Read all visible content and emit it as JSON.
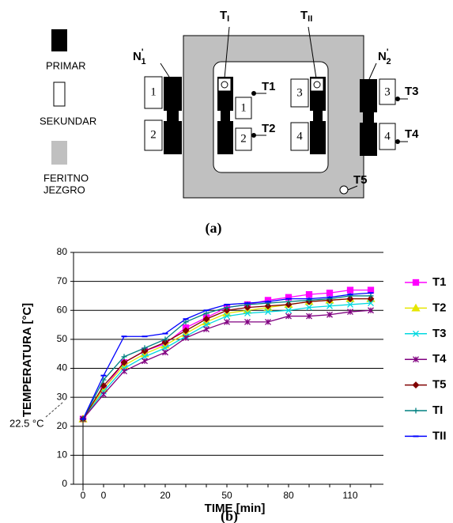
{
  "diagram": {
    "legend": {
      "primary": "PRIMAR",
      "secondary": "SEKUNDAR",
      "core": [
        "FERITNO",
        "JEZGRO"
      ]
    },
    "windings": {
      "n1": {
        "base": "N",
        "sup": "'",
        "sub": "1"
      },
      "n2": {
        "base": "N",
        "sup": "'",
        "sub": "2"
      }
    },
    "coils": [
      1,
      2,
      1,
      2,
      3,
      4,
      3,
      4
    ],
    "probes": [
      "T1",
      "T2",
      "T3",
      "T4",
      "T5"
    ],
    "thermocouples": [
      {
        "base": "T",
        "sub": "I"
      },
      {
        "base": "T",
        "sub": "II"
      }
    ],
    "caption": "(a)"
  },
  "chart_data": {
    "type": "line",
    "caption": "(b)",
    "x_label": "TIME [min]",
    "y_label": "TEMPERATURA  [°C]",
    "annotation": "22.5 °C",
    "categories": [
      "0",
      "0",
      null,
      null,
      "20",
      null,
      null,
      "50",
      null,
      null,
      "80",
      null,
      null,
      "110",
      null
    ],
    "ylim": [
      0,
      80
    ],
    "yticks": [
      0,
      10,
      20,
      30,
      40,
      50,
      60,
      70,
      80
    ],
    "grid": true,
    "legend": "right",
    "series": [
      {
        "name": "T1",
        "color": "#ff00ff",
        "marker": "square",
        "values": [
          22.5,
          33,
          42,
          46,
          48.5,
          54,
          57.5,
          61,
          62,
          63.5,
          64.5,
          65.5,
          66,
          67,
          67
        ]
      },
      {
        "name": "T2",
        "color": "#e6e600",
        "marker": "triangle",
        "values": [
          22.5,
          33,
          41,
          45,
          48,
          52,
          56,
          59,
          60,
          61,
          62,
          63,
          63.5,
          64,
          64
        ]
      },
      {
        "name": "T3",
        "color": "#00d8e0",
        "marker": "cross",
        "values": [
          22.5,
          32,
          40,
          44,
          47,
          51,
          55,
          58,
          59,
          59.5,
          60,
          61,
          61.5,
          62,
          62.5
        ]
      },
      {
        "name": "T4",
        "color": "#800080",
        "marker": "asterisk",
        "values": [
          22.5,
          31,
          39,
          42.5,
          45.5,
          50.5,
          53.5,
          56,
          56,
          56,
          58,
          58,
          58.5,
          59.5,
          60
        ]
      },
      {
        "name": "T5",
        "color": "#800000",
        "marker": "diamond",
        "values": [
          22.5,
          34,
          42,
          46,
          49,
          53,
          57,
          60,
          61,
          61.5,
          62,
          63,
          63.5,
          64,
          64
        ]
      },
      {
        "name": "TI",
        "color": "#008080",
        "marker": "plus",
        "values": [
          22.5,
          36,
          44,
          47,
          50,
          56,
          59,
          61,
          62,
          62.5,
          63,
          63.5,
          64,
          65,
          65
        ]
      },
      {
        "name": "TII",
        "color": "#0000ff",
        "marker": "dash",
        "values": [
          22.5,
          37.5,
          51,
          51,
          52,
          57,
          60,
          62,
          62.5,
          63,
          64,
          64,
          64.5,
          65.5,
          66
        ]
      }
    ]
  }
}
